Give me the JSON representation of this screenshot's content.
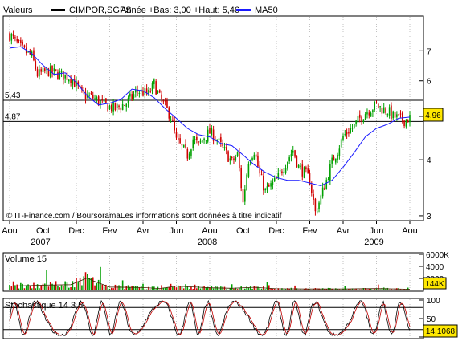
{
  "chart_data": [
    {
      "type": "candlestick",
      "header": {
        "label": "Valeurs",
        "series_name": "CIMPOR,SGPS",
        "year_stats": "Année +Bas: 3,00 +Haut: 5,46",
        "ma_label": "MA50"
      },
      "scale": "log",
      "ylim": [
        2.95,
        8.3
      ],
      "y_ticks": [
        "3",
        "4",
        "5",
        "6",
        "7"
      ],
      "ref_lines": [
        {
          "label": "5,43",
          "value": 5.43
        },
        {
          "label": "4,87",
          "value": 4.87
        }
      ],
      "last_value_label": "4,96",
      "watermark": "© IT-Finance.com / BoursoramaLes informations sont données à titre indicatif",
      "x_month_labels": [
        "Aou",
        "Oct",
        "Dec",
        "Fev",
        "Avr",
        "Jun",
        "Aou",
        "Oct",
        "Dec",
        "Fev",
        "Avr",
        "Jun",
        "Aou"
      ],
      "x_year_labels": [
        "2007",
        "2008",
        "2009"
      ],
      "price_path": [
        [
          0,
          7.6
        ],
        [
          2,
          7.1
        ],
        [
          4,
          6.8
        ],
        [
          5,
          6.2
        ],
        [
          7,
          6.3
        ],
        [
          9,
          6.2
        ],
        [
          11,
          6.1
        ],
        [
          13,
          5.6
        ],
        [
          15,
          5.5
        ],
        [
          17,
          5.3
        ],
        [
          19,
          5.2
        ],
        [
          21,
          5.35
        ],
        [
          23,
          5.7
        ],
        [
          25,
          5.6
        ],
        [
          26,
          5.9
        ],
        [
          27,
          5.5
        ],
        [
          29,
          5.0
        ],
        [
          30,
          4.4
        ],
        [
          32,
          4.1
        ],
        [
          33,
          4.45
        ],
        [
          34,
          4.3
        ],
        [
          35,
          4.5
        ],
        [
          36,
          4.6
        ],
        [
          37,
          4.5
        ],
        [
          38,
          4.3
        ],
        [
          40,
          3.95
        ],
        [
          41,
          4.1
        ],
        [
          42,
          3.2
        ],
        [
          43,
          4.0
        ],
        [
          44,
          4.2
        ],
        [
          45,
          3.7
        ],
        [
          46,
          3.4
        ],
        [
          47,
          3.5
        ],
        [
          48,
          3.6
        ],
        [
          49,
          3.8
        ],
        [
          50,
          4.0
        ],
        [
          51,
          4.2
        ],
        [
          52,
          3.85
        ],
        [
          53,
          3.75
        ],
        [
          54,
          3.6
        ],
        [
          55,
          3.05
        ],
        [
          56,
          3.3
        ],
        [
          57,
          3.6
        ],
        [
          58,
          3.95
        ],
        [
          59,
          4.2
        ],
        [
          60,
          4.5
        ],
        [
          61,
          4.65
        ],
        [
          62,
          4.75
        ],
        [
          63,
          4.95
        ],
        [
          64,
          5.1
        ],
        [
          65,
          5.2
        ],
        [
          66,
          5.3
        ],
        [
          67,
          5.2
        ],
        [
          68,
          5.15
        ],
        [
          69,
          5.0
        ],
        [
          70,
          4.95
        ],
        [
          71,
          4.9
        ],
        [
          72,
          4.96
        ]
      ],
      "ma50_path": [
        [
          0,
          7.1
        ],
        [
          2,
          7.15
        ],
        [
          4,
          6.9
        ],
        [
          6,
          6.5
        ],
        [
          8,
          6.2
        ],
        [
          10,
          6.25
        ],
        [
          12,
          5.95
        ],
        [
          14,
          5.55
        ],
        [
          16,
          5.3
        ],
        [
          18,
          5.35
        ],
        [
          20,
          5.45
        ],
        [
          22,
          5.75
        ],
        [
          24,
          5.7
        ],
        [
          26,
          5.5
        ],
        [
          28,
          5.2
        ],
        [
          30,
          4.95
        ],
        [
          32,
          4.7
        ],
        [
          34,
          4.55
        ],
        [
          36,
          4.5
        ],
        [
          38,
          4.35
        ],
        [
          40,
          4.3
        ],
        [
          42,
          4.1
        ],
        [
          44,
          3.9
        ],
        [
          46,
          3.75
        ],
        [
          48,
          3.65
        ],
        [
          50,
          3.6
        ],
        [
          52,
          3.6
        ],
        [
          54,
          3.55
        ],
        [
          56,
          3.5
        ],
        [
          58,
          3.6
        ],
        [
          60,
          3.85
        ],
        [
          62,
          4.15
        ],
        [
          64,
          4.5
        ],
        [
          66,
          4.7
        ],
        [
          68,
          4.8
        ],
        [
          70,
          4.95
        ],
        [
          72,
          4.98
        ]
      ]
    },
    {
      "type": "bar",
      "label": "Volume 15",
      "ylim": [
        0,
        6000
      ],
      "y_ticks": [
        "6000K",
        "4000",
        "2000"
      ],
      "last_value_label": "144K",
      "profile": [
        [
          0,
          900
        ],
        [
          6,
          1100
        ],
        [
          11,
          1200
        ],
        [
          14,
          2600
        ],
        [
          15,
          2000
        ],
        [
          18,
          700
        ],
        [
          24,
          600
        ],
        [
          27,
          400
        ],
        [
          30,
          900
        ],
        [
          36,
          550
        ],
        [
          40,
          450
        ],
        [
          44,
          650
        ],
        [
          48,
          350
        ],
        [
          54,
          300
        ],
        [
          60,
          300
        ],
        [
          66,
          380
        ],
        [
          72,
          250
        ]
      ]
    },
    {
      "type": "line",
      "label": "Stochastique 14 3 5",
      "ylim": [
        0,
        100
      ],
      "y_ticks": [
        "100",
        "50",
        "0"
      ],
      "ref_lines": [
        80,
        20
      ],
      "last_value_label": "14,1068"
    }
  ]
}
